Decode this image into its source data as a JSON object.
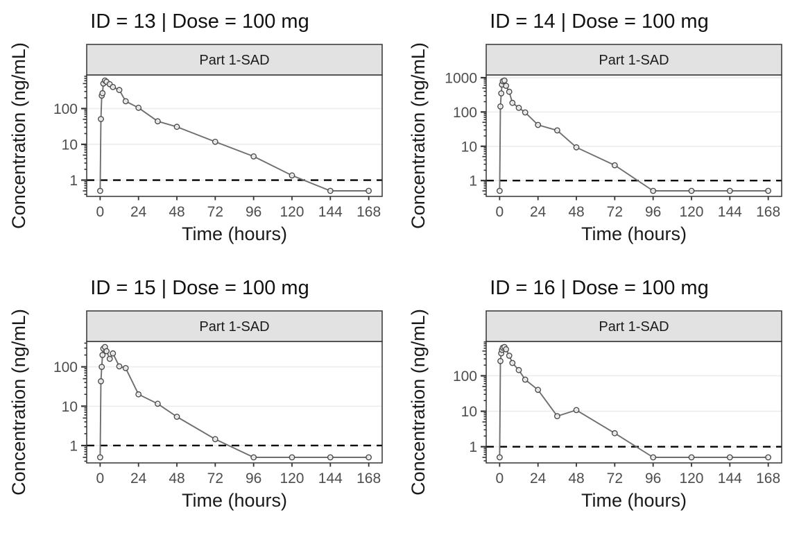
{
  "figure": {
    "kind": "faceted-pk-concentration-time-plot",
    "rows": 2,
    "cols": 2,
    "background": "#ffffff"
  },
  "style": {
    "series_line_color": "#6e6e6e",
    "marker_stroke_color": "#4b4b4b",
    "marker_fill_color": "#f2f2f2",
    "lloq_line_color": "#000000",
    "grid_color": "#ececec",
    "panel_border_color": "#333333",
    "strip_fill": "#e2e2e2",
    "strip_border": "#333333",
    "strip_text_color": "#1a1a1a",
    "tick_label_color": "#4d4d4d",
    "tick_mark_color": "#333333",
    "title_color": "#111111",
    "axis_title_color": "#1a1a1a"
  },
  "chart_data": [
    {
      "type": "line",
      "title": "ID = 13 | Dose = 100 mg",
      "subject_id": 13,
      "dose": "100 mg",
      "facet_strip": "Part 1-SAD",
      "xlabel": "Time (hours)",
      "ylabel": "Concentration (ng/mL)",
      "x_scale": "linear",
      "y_scale": "log10",
      "xlim": [
        0,
        168
      ],
      "x_ticks": [
        0,
        24,
        48,
        72,
        96,
        120,
        144,
        168
      ],
      "y_labeled_ticks": [
        1,
        10,
        100
      ],
      "lloq": 1,
      "x": [
        0,
        0.5,
        1,
        1.5,
        2,
        3,
        4,
        6,
        8,
        12,
        16,
        24,
        36,
        48,
        72,
        96,
        120,
        144,
        168
      ],
      "y": [
        0.5,
        51,
        230,
        270,
        500,
        610,
        560,
        480,
        400,
        330,
        160,
        105,
        44,
        31,
        11.8,
        4.6,
        1.35,
        0.5,
        0.5
      ]
    },
    {
      "type": "line",
      "title": "ID = 14 | Dose = 100 mg",
      "subject_id": 14,
      "dose": "100 mg",
      "facet_strip": "Part 1-SAD",
      "xlabel": "Time (hours)",
      "ylabel": "Concentration (ng/mL)",
      "x_scale": "linear",
      "y_scale": "log10",
      "xlim": [
        0,
        168
      ],
      "x_ticks": [
        0,
        24,
        48,
        72,
        96,
        120,
        144,
        168
      ],
      "y_labeled_ticks": [
        1,
        10,
        100,
        1000
      ],
      "lloq": 1,
      "x": [
        0,
        0.5,
        1,
        1.5,
        2,
        3,
        4,
        6,
        8,
        12,
        16,
        24,
        36,
        48,
        72,
        96,
        120,
        144,
        168
      ],
      "y": [
        0.5,
        145,
        350,
        630,
        790,
        830,
        580,
        390,
        185,
        132,
        97,
        42,
        29,
        9.3,
        2.8,
        0.5,
        0.5,
        0.5,
        0.5
      ]
    },
    {
      "type": "line",
      "title": "ID = 15 | Dose = 100 mg",
      "subject_id": 15,
      "dose": "100 mg",
      "facet_strip": "Part 1-SAD",
      "xlabel": "Time (hours)",
      "ylabel": "Concentration (ng/mL)",
      "x_scale": "linear",
      "y_scale": "log10",
      "xlim": [
        0,
        168
      ],
      "x_ticks": [
        0,
        24,
        48,
        72,
        96,
        120,
        144,
        168
      ],
      "y_labeled_ticks": [
        1,
        10,
        100
      ],
      "lloq": 1,
      "x": [
        0,
        0.5,
        1,
        1.5,
        2,
        3,
        4,
        6,
        8,
        12,
        16,
        24,
        36,
        48,
        72,
        96,
        120,
        144,
        168
      ],
      "y": [
        0.5,
        43,
        100,
        200,
        290,
        320,
        250,
        160,
        220,
        103,
        93,
        20,
        11.5,
        5.4,
        1.45,
        0.5,
        0.5,
        0.5,
        0.5
      ]
    },
    {
      "type": "line",
      "title": "ID = 16 | Dose = 100 mg",
      "subject_id": 16,
      "dose": "100 mg",
      "facet_strip": "Part 1-SAD",
      "xlabel": "Time (hours)",
      "ylabel": "Concentration (ng/mL)",
      "x_scale": "linear",
      "y_scale": "log10",
      "xlim": [
        0,
        168
      ],
      "x_ticks": [
        0,
        24,
        48,
        72,
        96,
        120,
        144,
        168
      ],
      "y_labeled_ticks": [
        1,
        10,
        100
      ],
      "lloq": 1,
      "x": [
        0,
        0.5,
        1,
        1.5,
        2,
        3,
        4,
        6,
        8,
        12,
        16,
        24,
        36,
        48,
        72,
        96,
        120,
        144,
        168
      ],
      "y": [
        0.5,
        260,
        430,
        540,
        620,
        650,
        560,
        370,
        230,
        145,
        78,
        40,
        7.3,
        10.8,
        2.4,
        0.5,
        0.5,
        0.5,
        0.5
      ]
    }
  ]
}
